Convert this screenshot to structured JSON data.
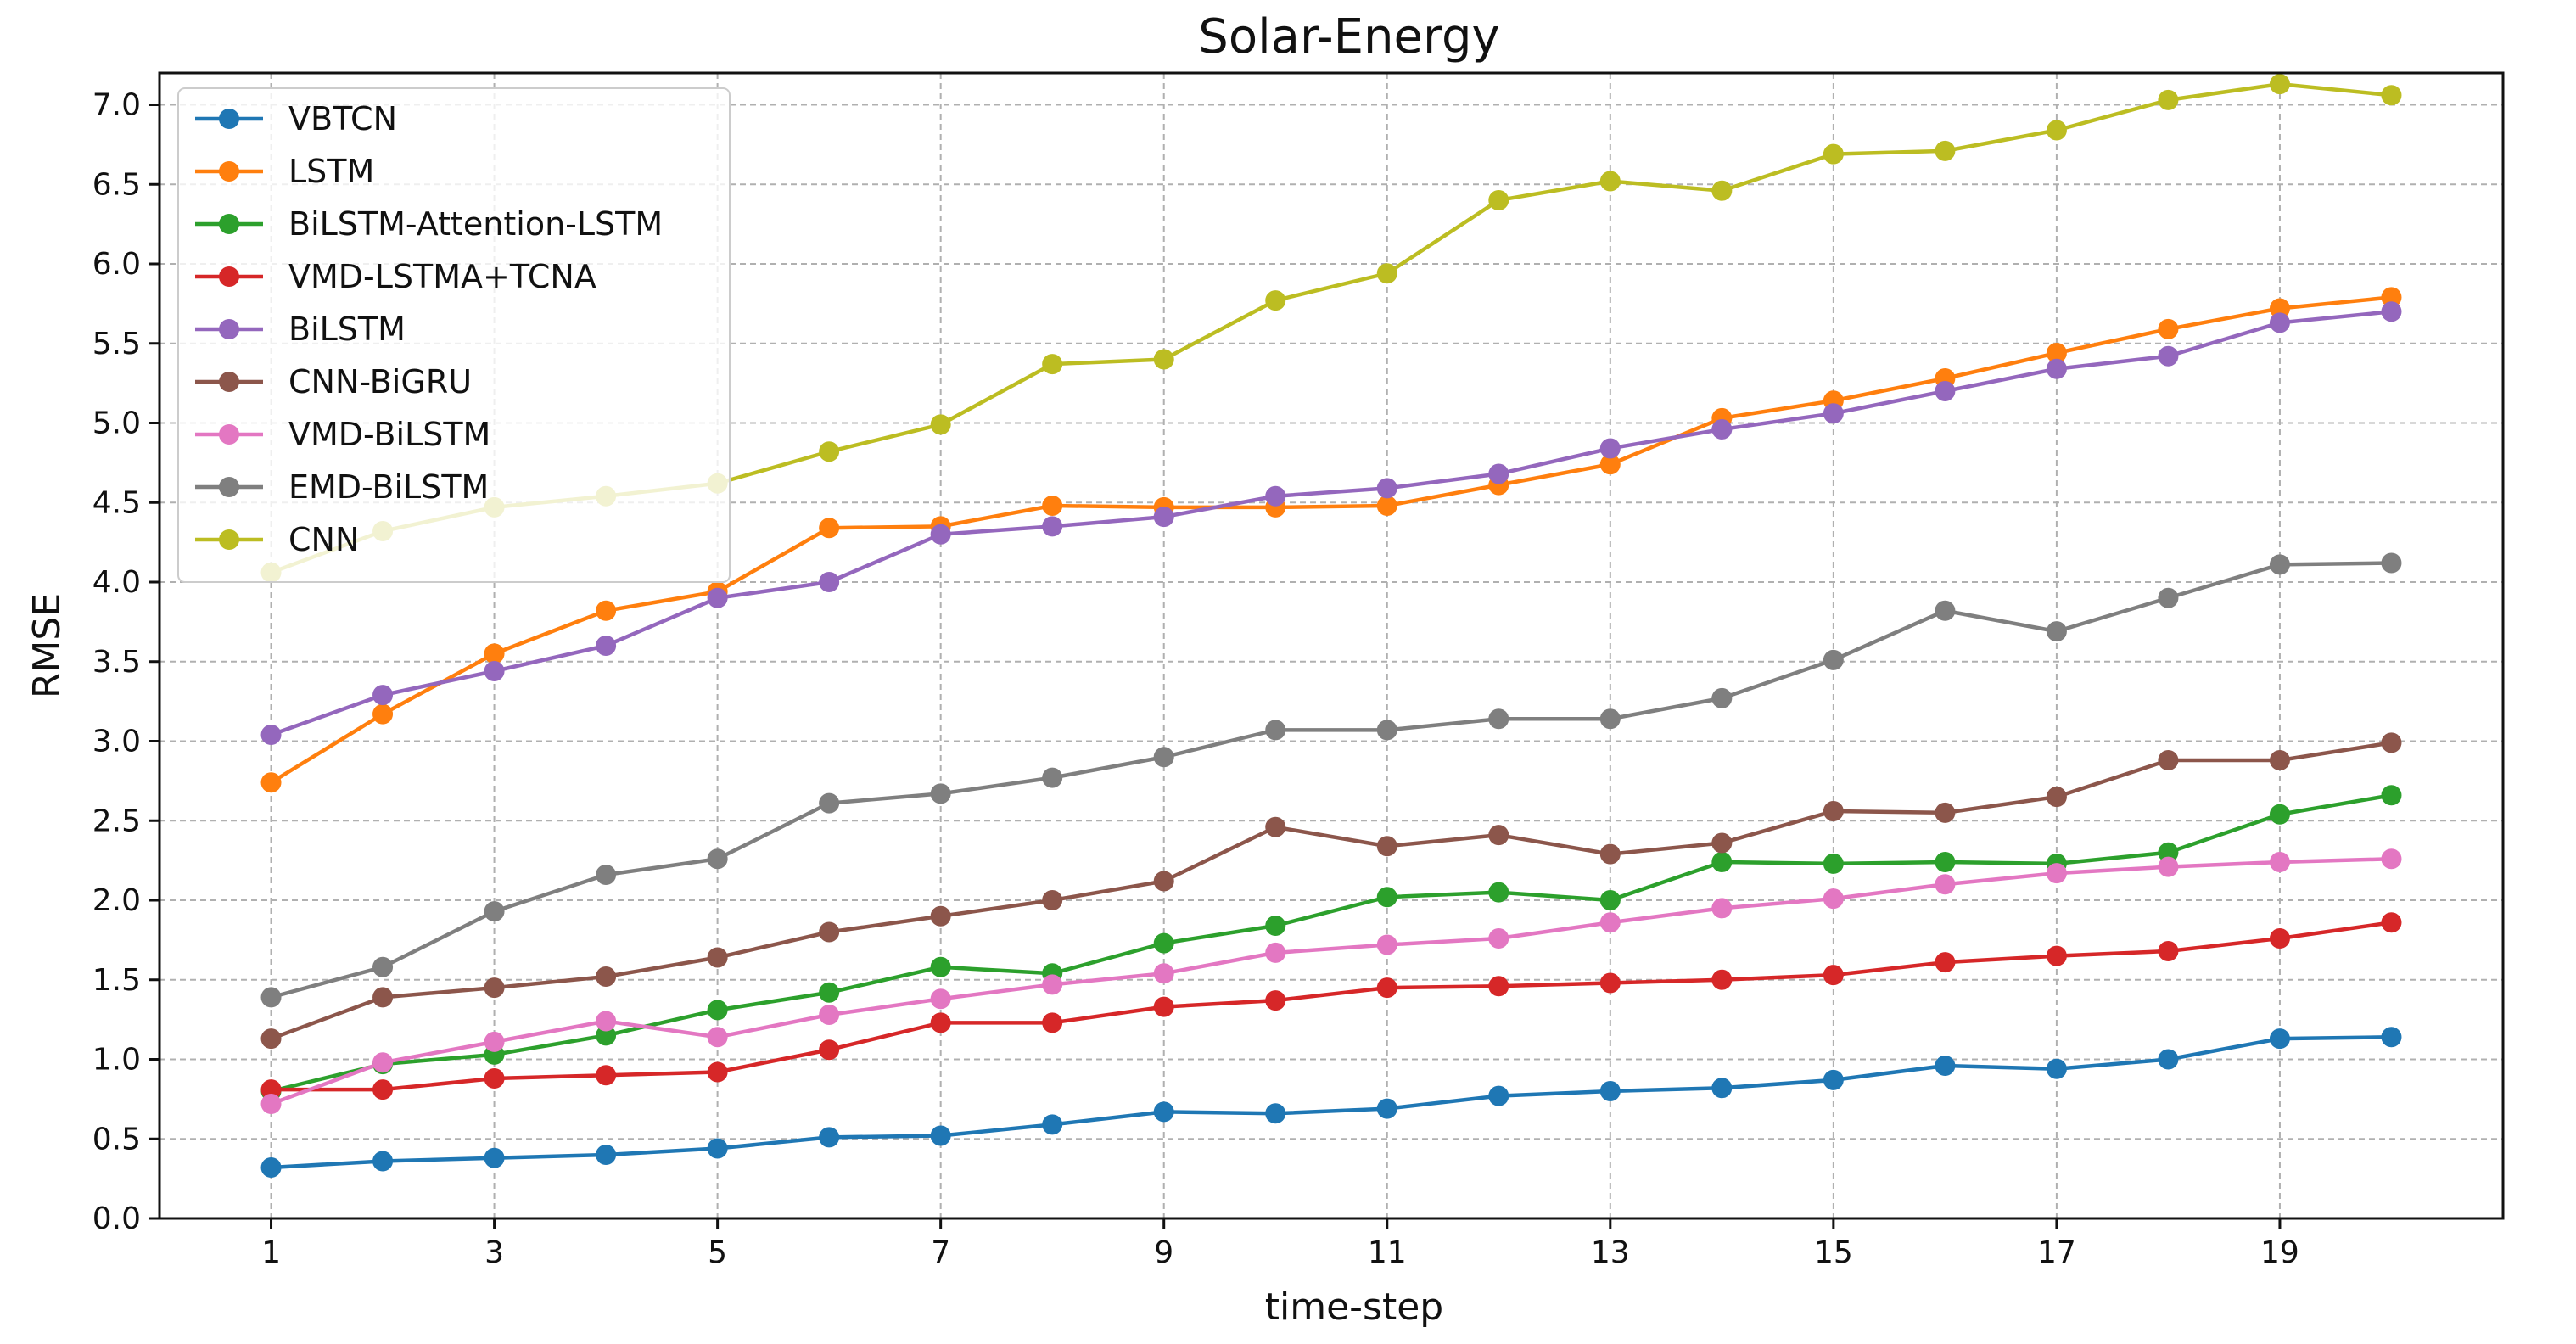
{
  "chart_data": {
    "type": "line",
    "title": "Solar-Energy",
    "xlabel": "time-step",
    "ylabel": "RMSE",
    "xlim": [
      0,
      21
    ],
    "ylim": [
      0.0,
      7.2
    ],
    "xticks": [
      1,
      3,
      5,
      7,
      9,
      11,
      13,
      15,
      17,
      19
    ],
    "yticks": [
      0.0,
      0.5,
      1.0,
      1.5,
      2.0,
      2.5,
      3.0,
      3.5,
      4.0,
      4.5,
      5.0,
      5.5,
      6.0,
      6.5,
      7.0
    ],
    "ytick_labels": [
      "0.0",
      "0.5",
      "1.0",
      "1.5",
      "2.0",
      "2.5",
      "3.0",
      "3.5",
      "4.0",
      "4.5",
      "5.0",
      "5.5",
      "6.0",
      "6.5",
      "7.0"
    ],
    "grid": true,
    "legend_position": "top-left",
    "x": [
      1,
      2,
      3,
      4,
      5,
      6,
      7,
      8,
      9,
      10,
      11,
      12,
      13,
      14,
      15,
      16,
      17,
      18,
      19,
      20
    ],
    "series": [
      {
        "name": "VBTCN",
        "color": "#1f77b4",
        "values": [
          0.32,
          0.36,
          0.38,
          0.4,
          0.44,
          0.51,
          0.52,
          0.59,
          0.67,
          0.66,
          0.69,
          0.77,
          0.8,
          0.82,
          0.87,
          0.96,
          0.94,
          1.0,
          1.13,
          1.14
        ]
      },
      {
        "name": "LSTM",
        "color": "#ff7f0e",
        "values": [
          2.74,
          3.17,
          3.55,
          3.82,
          3.94,
          4.34,
          4.35,
          4.48,
          4.47,
          4.47,
          4.48,
          4.61,
          4.74,
          5.03,
          5.14,
          5.28,
          5.44,
          5.59,
          5.72,
          5.79
        ]
      },
      {
        "name": "BiLSTM-Attention-LSTM",
        "color": "#2ca02c",
        "values": [
          0.8,
          0.97,
          1.03,
          1.15,
          1.31,
          1.42,
          1.58,
          1.54,
          1.73,
          1.84,
          2.02,
          2.05,
          2.0,
          2.24,
          2.23,
          2.24,
          2.23,
          2.3,
          2.54,
          2.66
        ]
      },
      {
        "name": "VMD-LSTMA+TCNA",
        "color": "#d62728",
        "values": [
          0.81,
          0.81,
          0.88,
          0.9,
          0.92,
          1.06,
          1.23,
          1.23,
          1.33,
          1.37,
          1.45,
          1.46,
          1.48,
          1.5,
          1.53,
          1.61,
          1.65,
          1.68,
          1.76,
          1.86
        ]
      },
      {
        "name": "BiLSTM",
        "color": "#9467bd",
        "values": [
          3.04,
          3.29,
          3.44,
          3.6,
          3.9,
          4.0,
          4.3,
          4.35,
          4.41,
          4.54,
          4.59,
          4.68,
          4.84,
          4.96,
          5.06,
          5.2,
          5.34,
          5.42,
          5.63,
          5.7
        ]
      },
      {
        "name": "CNN-BiGRU",
        "color": "#8c564b",
        "values": [
          1.13,
          1.39,
          1.45,
          1.52,
          1.64,
          1.8,
          1.9,
          2.0,
          2.12,
          2.46,
          2.34,
          2.41,
          2.29,
          2.36,
          2.56,
          2.55,
          2.65,
          2.88,
          2.88,
          2.99
        ]
      },
      {
        "name": "VMD-BiLSTM",
        "color": "#e377c2",
        "values": [
          0.72,
          0.98,
          1.11,
          1.24,
          1.14,
          1.28,
          1.38,
          1.47,
          1.54,
          1.67,
          1.72,
          1.76,
          1.86,
          1.95,
          2.01,
          2.1,
          2.17,
          2.21,
          2.24,
          2.26
        ]
      },
      {
        "name": "EMD-BiLSTM",
        "color": "#7f7f7f",
        "values": [
          1.39,
          1.58,
          1.93,
          2.16,
          2.26,
          2.61,
          2.67,
          2.77,
          2.9,
          3.07,
          3.07,
          3.14,
          3.14,
          3.27,
          3.51,
          3.82,
          3.69,
          3.9,
          4.11,
          4.12
        ]
      },
      {
        "name": "CNN",
        "color": "#bcbd22",
        "values": [
          4.06,
          4.32,
          4.47,
          4.54,
          4.62,
          4.82,
          4.99,
          5.37,
          5.4,
          5.77,
          5.94,
          6.4,
          6.52,
          6.46,
          6.69,
          6.71,
          6.84,
          7.03,
          7.13,
          7.06
        ]
      }
    ]
  }
}
